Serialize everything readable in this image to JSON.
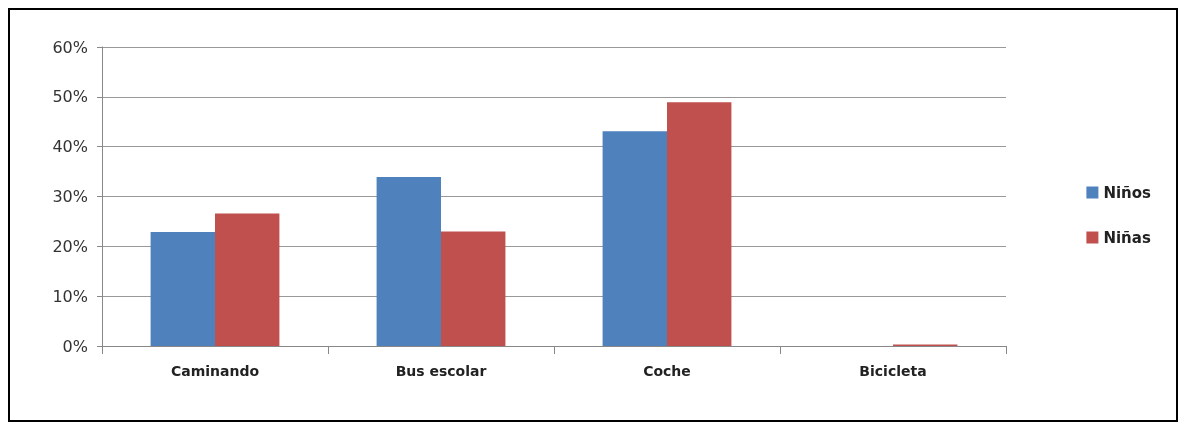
{
  "chart_data": {
    "type": "bar",
    "categories": [
      "Caminando",
      "Bus escolar",
      "Coche",
      "Bicicleta"
    ],
    "series": [
      {
        "name": "Niños",
        "color": "#4f81bd",
        "values": [
          22.9,
          33.9,
          43.1,
          0
        ]
      },
      {
        "name": "Niñas",
        "color": "#c0504d",
        "values": [
          26.6,
          23.0,
          48.9,
          0.3
        ]
      }
    ],
    "ylim": [
      0,
      60
    ],
    "yticks": [
      {
        "value": 0,
        "label": "0%"
      },
      {
        "value": 10,
        "label": "10%"
      },
      {
        "value": 20,
        "label": "20%"
      },
      {
        "value": 30,
        "label": "30%"
      },
      {
        "value": 40,
        "label": "40%"
      },
      {
        "value": 50,
        "label": "50%"
      },
      {
        "value": 60,
        "label": "60%"
      }
    ],
    "grid": "y",
    "legend": "right"
  }
}
